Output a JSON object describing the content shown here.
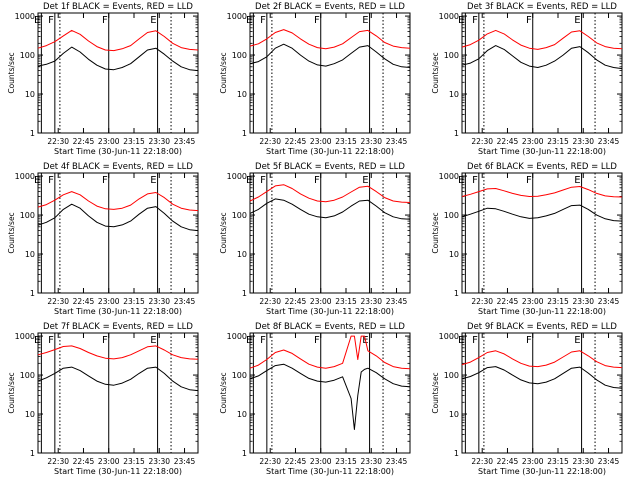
{
  "figure": {
    "xlabel": "Start Time (30-Jun-11 22:18:00)",
    "ylabel": "Counts/sec",
    "x_ticks": [
      "22:30",
      "22:45",
      "23:00",
      "23:15",
      "23:30",
      "23:45"
    ],
    "y_ticks": [
      "1",
      "10",
      "100",
      "1000"
    ],
    "colors": {
      "black_series": "#000000",
      "red_series": "#ff0000",
      "axes": "#000000",
      "background": "#ffffff"
    }
  },
  "chart_data": [
    {
      "type": "line",
      "title": "Det 1f BLACK = Events, RED = LLD",
      "xlabel": "Start Time (30-Jun-11 22:18:00)",
      "ylabel": "Counts/sec",
      "x_unit": "minutes after 22:18",
      "xlim": [
        0,
        95
      ],
      "ylim": [
        1,
        1200
      ],
      "yscale": "log",
      "x": [
        0,
        5,
        10,
        15,
        20,
        25,
        30,
        35,
        40,
        45,
        50,
        55,
        60,
        65,
        70,
        75,
        80,
        85,
        90,
        95
      ],
      "series": [
        {
          "name": "Events",
          "color": "#000000",
          "values": [
            52,
            58,
            70,
            110,
            160,
            120,
            78,
            55,
            44,
            42,
            48,
            60,
            90,
            135,
            150,
            105,
            70,
            50,
            42,
            40
          ]
        },
        {
          "name": "LLD",
          "color": "#ff0000",
          "values": [
            150,
            175,
            220,
            310,
            430,
            340,
            230,
            165,
            135,
            130,
            145,
            175,
            260,
            380,
            420,
            300,
            200,
            155,
            140,
            135
          ]
        }
      ],
      "markers": [
        {
          "label": "E",
          "x": 2,
          "style": "solid"
        },
        {
          "label": "F",
          "x": 10,
          "style": "solid"
        },
        {
          "label": "",
          "x": 13,
          "style": "dotted"
        },
        {
          "label": "F",
          "x": 42,
          "style": "solid"
        },
        {
          "label": "E",
          "x": 71,
          "style": "solid"
        },
        {
          "label": "",
          "x": 79,
          "style": "dotted"
        }
      ]
    },
    {
      "type": "line",
      "title": "Det 2f BLACK = Events, RED = LLD",
      "xlabel": "Start Time (30-Jun-11 22:18:00)",
      "ylabel": "Counts/sec",
      "x_unit": "minutes after 22:18",
      "xlim": [
        0,
        95
      ],
      "ylim": [
        1,
        1200
      ],
      "yscale": "log",
      "x": [
        0,
        5,
        10,
        15,
        20,
        25,
        30,
        35,
        40,
        45,
        50,
        55,
        60,
        65,
        70,
        75,
        80,
        85,
        90,
        95
      ],
      "series": [
        {
          "name": "Events",
          "color": "#000000",
          "values": [
            60,
            68,
            90,
            150,
            190,
            150,
            100,
            70,
            56,
            52,
            60,
            75,
            110,
            160,
            175,
            120,
            80,
            58,
            50,
            48
          ]
        },
        {
          "name": "LLD",
          "color": "#ff0000",
          "values": [
            170,
            195,
            260,
            380,
            450,
            370,
            260,
            190,
            155,
            145,
            160,
            195,
            280,
            400,
            430,
            310,
            210,
            170,
            155,
            150
          ]
        }
      ],
      "markers": [
        {
          "label": "E",
          "x": 2,
          "style": "solid"
        },
        {
          "label": "F",
          "x": 10,
          "style": "solid"
        },
        {
          "label": "",
          "x": 13,
          "style": "dotted"
        },
        {
          "label": "F",
          "x": 42,
          "style": "solid"
        },
        {
          "label": "E",
          "x": 71,
          "style": "solid"
        },
        {
          "label": "",
          "x": 79,
          "style": "dotted"
        }
      ]
    },
    {
      "type": "line",
      "title": "Det 3f BLACK = Events, RED = LLD",
      "xlabel": "Start Time (30-Jun-11 22:18:00)",
      "ylabel": "Counts/sec",
      "x_unit": "minutes after 22:18",
      "xlim": [
        0,
        95
      ],
      "ylim": [
        1,
        1200
      ],
      "yscale": "log",
      "x": [
        0,
        5,
        10,
        15,
        20,
        25,
        30,
        35,
        40,
        45,
        50,
        55,
        60,
        65,
        70,
        75,
        80,
        85,
        90,
        95
      ],
      "series": [
        {
          "name": "Events",
          "color": "#000000",
          "values": [
            55,
            62,
            80,
            130,
            175,
            140,
            95,
            65,
            52,
            48,
            55,
            70,
            100,
            150,
            165,
            115,
            75,
            55,
            48,
            45
          ]
        },
        {
          "name": "LLD",
          "color": "#ff0000",
          "values": [
            160,
            185,
            240,
            350,
            430,
            350,
            245,
            180,
            150,
            140,
            155,
            185,
            270,
            390,
            420,
            300,
            205,
            165,
            150,
            145
          ]
        }
      ],
      "markers": [
        {
          "label": "E",
          "x": 2,
          "style": "solid"
        },
        {
          "label": "F",
          "x": 10,
          "style": "solid"
        },
        {
          "label": "",
          "x": 13,
          "style": "dotted"
        },
        {
          "label": "F",
          "x": 42,
          "style": "solid"
        },
        {
          "label": "E",
          "x": 71,
          "style": "solid"
        },
        {
          "label": "",
          "x": 79,
          "style": "dotted"
        }
      ]
    },
    {
      "type": "line",
      "title": "Det 4f BLACK = Events, RED = LLD",
      "xlabel": "Start Time (30-Jun-11 22:18:00)",
      "ylabel": "Counts/sec",
      "x_unit": "minutes after 22:18",
      "xlim": [
        0,
        95
      ],
      "ylim": [
        1,
        1200
      ],
      "yscale": "log",
      "x": [
        0,
        5,
        10,
        15,
        20,
        25,
        30,
        35,
        40,
        45,
        50,
        55,
        60,
        65,
        70,
        75,
        80,
        85,
        90,
        95
      ],
      "series": [
        {
          "name": "Events",
          "color": "#000000",
          "values": [
            55,
            65,
            85,
            140,
            190,
            150,
            95,
            65,
            52,
            50,
            56,
            70,
            105,
            150,
            165,
            110,
            70,
            50,
            42,
            40
          ]
        },
        {
          "name": "LLD",
          "color": "#ff0000",
          "values": [
            160,
            185,
            240,
            330,
            400,
            330,
            230,
            170,
            145,
            140,
            150,
            180,
            260,
            350,
            380,
            280,
            190,
            150,
            135,
            130
          ]
        }
      ],
      "markers": [
        {
          "label": "E",
          "x": 2,
          "style": "solid"
        },
        {
          "label": "F",
          "x": 10,
          "style": "solid"
        },
        {
          "label": "",
          "x": 13,
          "style": "dotted"
        },
        {
          "label": "F",
          "x": 42,
          "style": "solid"
        },
        {
          "label": "E",
          "x": 71,
          "style": "solid"
        },
        {
          "label": "",
          "x": 79,
          "style": "dotted"
        }
      ]
    },
    {
      "type": "line",
      "title": "Det 5f BLACK = Events, RED = LLD",
      "xlabel": "Start Time (30-Jun-11 22:18:00)",
      "ylabel": "Counts/sec",
      "x_unit": "minutes after 22:18",
      "xlim": [
        0,
        95
      ],
      "ylim": [
        1,
        1200
      ],
      "yscale": "log",
      "x": [
        0,
        5,
        10,
        15,
        20,
        25,
        30,
        35,
        40,
        45,
        50,
        55,
        60,
        65,
        70,
        75,
        80,
        85,
        90,
        95
      ],
      "series": [
        {
          "name": "Events",
          "color": "#000000",
          "values": [
            110,
            140,
            200,
            260,
            240,
            190,
            140,
            105,
            90,
            85,
            95,
            120,
            170,
            230,
            240,
            170,
            115,
            90,
            80,
            78
          ]
        },
        {
          "name": "LLD",
          "color": "#ff0000",
          "values": [
            230,
            290,
            400,
            560,
            600,
            480,
            350,
            270,
            230,
            220,
            240,
            290,
            390,
            520,
            550,
            400,
            280,
            230,
            215,
            210
          ]
        }
      ],
      "markers": [
        {
          "label": "E",
          "x": 2,
          "style": "solid"
        },
        {
          "label": "F",
          "x": 10,
          "style": "solid"
        },
        {
          "label": "",
          "x": 13,
          "style": "dotted"
        },
        {
          "label": "F",
          "x": 42,
          "style": "solid"
        },
        {
          "label": "E",
          "x": 71,
          "style": "solid"
        },
        {
          "label": "",
          "x": 79,
          "style": "dotted"
        }
      ]
    },
    {
      "type": "line",
      "title": "Det 6f BLACK = Events, RED = LLD",
      "xlabel": "Start Time (30-Jun-11 22:18:00)",
      "ylabel": "Counts/sec",
      "x_unit": "minutes after 22:18",
      "xlim": [
        0,
        95
      ],
      "ylim": [
        1,
        1200
      ],
      "yscale": "log",
      "x": [
        0,
        5,
        10,
        15,
        20,
        25,
        30,
        35,
        40,
        45,
        50,
        55,
        60,
        65,
        70,
        75,
        80,
        85,
        90,
        95
      ],
      "series": [
        {
          "name": "Events",
          "color": "#000000",
          "values": [
            90,
            105,
            125,
            150,
            145,
            125,
            105,
            90,
            82,
            85,
            95,
            110,
            140,
            175,
            180,
            140,
            100,
            80,
            72,
            70
          ]
        },
        {
          "name": "LLD",
          "color": "#ff0000",
          "values": [
            300,
            340,
            400,
            470,
            480,
            420,
            360,
            320,
            300,
            305,
            330,
            370,
            440,
            520,
            540,
            450,
            360,
            310,
            295,
            290
          ]
        }
      ],
      "markers": [
        {
          "label": "E",
          "x": 2,
          "style": "solid"
        },
        {
          "label": "F",
          "x": 10,
          "style": "solid"
        },
        {
          "label": "",
          "x": 13,
          "style": "dotted"
        },
        {
          "label": "F",
          "x": 42,
          "style": "solid"
        },
        {
          "label": "E",
          "x": 71,
          "style": "solid"
        },
        {
          "label": "",
          "x": 79,
          "style": "dotted"
        }
      ]
    },
    {
      "type": "line",
      "title": "Det 7f BLACK = Events, RED = LLD",
      "xlabel": "Start Time (30-Jun-11 22:18:00)",
      "ylabel": "Counts/sec",
      "x_unit": "minutes after 22:18",
      "xlim": [
        0,
        95
      ],
      "ylim": [
        1,
        1200
      ],
      "yscale": "log",
      "x": [
        0,
        5,
        10,
        15,
        20,
        25,
        30,
        35,
        40,
        45,
        50,
        55,
        60,
        65,
        70,
        75,
        80,
        85,
        90,
        95
      ],
      "series": [
        {
          "name": "Events",
          "color": "#000000",
          "values": [
            70,
            85,
            110,
            150,
            160,
            130,
            95,
            70,
            58,
            55,
            62,
            78,
            110,
            150,
            160,
            110,
            70,
            50,
            42,
            40
          ]
        },
        {
          "name": "LLD",
          "color": "#ff0000",
          "values": [
            330,
            380,
            450,
            540,
            560,
            480,
            380,
            310,
            270,
            260,
            280,
            330,
            420,
            530,
            560,
            440,
            330,
            280,
            260,
            255
          ]
        }
      ],
      "markers": [
        {
          "label": "E",
          "x": 2,
          "style": "solid"
        },
        {
          "label": "F",
          "x": 10,
          "style": "solid"
        },
        {
          "label": "",
          "x": 13,
          "style": "dotted"
        },
        {
          "label": "F",
          "x": 42,
          "style": "solid"
        },
        {
          "label": "E",
          "x": 71,
          "style": "solid"
        },
        {
          "label": "",
          "x": 79,
          "style": "dotted"
        }
      ]
    },
    {
      "type": "line",
      "title": "Det 8f BLACK = Events, RED = LLD",
      "xlabel": "Start Time (30-Jun-11 22:18:00)",
      "ylabel": "Counts/sec",
      "x_unit": "minutes after 22:18",
      "xlim": [
        0,
        95
      ],
      "ylim": [
        1,
        1200
      ],
      "yscale": "log",
      "x": [
        0,
        5,
        10,
        15,
        20,
        25,
        30,
        35,
        40,
        45,
        50,
        55,
        60,
        62,
        64,
        66,
        68,
        70,
        75,
        80,
        85,
        90,
        95
      ],
      "series": [
        {
          "name": "Events",
          "color": "#000000",
          "values": [
            80,
            95,
            130,
            175,
            190,
            150,
            110,
            82,
            70,
            66,
            74,
            90,
            25,
            4,
            30,
            120,
            140,
            150,
            115,
            80,
            60,
            52,
            50
          ]
        },
        {
          "name": "LLD",
          "color": "#ff0000",
          "values": [
            150,
            180,
            250,
            380,
            440,
            360,
            260,
            190,
            160,
            150,
            165,
            200,
            1000,
            1000,
            250,
            1000,
            1000,
            420,
            310,
            210,
            165,
            150,
            145
          ]
        }
      ],
      "markers": [
        {
          "label": "E",
          "x": 2,
          "style": "solid"
        },
        {
          "label": "F",
          "x": 10,
          "style": "solid"
        },
        {
          "label": "",
          "x": 13,
          "style": "dotted"
        },
        {
          "label": "F",
          "x": 42,
          "style": "solid"
        },
        {
          "label": "E",
          "x": 71,
          "style": "solid"
        },
        {
          "label": "",
          "x": 79,
          "style": "dotted"
        }
      ]
    },
    {
      "type": "line",
      "title": "Det 9f BLACK = Events, RED = LLD",
      "xlabel": "Start Time (30-Jun-11 22:18:00)",
      "ylabel": "Counts/sec",
      "x_unit": "minutes after 22:18",
      "xlim": [
        0,
        95
      ],
      "ylim": [
        1,
        1200
      ],
      "yscale": "log",
      "x": [
        0,
        5,
        10,
        15,
        20,
        25,
        30,
        35,
        40,
        45,
        50,
        55,
        60,
        65,
        70,
        75,
        80,
        85,
        90,
        95
      ],
      "series": [
        {
          "name": "Events",
          "color": "#000000",
          "values": [
            80,
            92,
            115,
            155,
            165,
            135,
            100,
            75,
            63,
            60,
            66,
            80,
            110,
            150,
            160,
            112,
            75,
            55,
            48,
            46
          ]
        },
        {
          "name": "LLD",
          "color": "#ff0000",
          "values": [
            185,
            215,
            280,
            380,
            420,
            350,
            260,
            200,
            170,
            165,
            180,
            215,
            290,
            390,
            420,
            310,
            220,
            175,
            160,
            155
          ]
        }
      ],
      "markers": [
        {
          "label": "E",
          "x": 2,
          "style": "solid"
        },
        {
          "label": "F",
          "x": 10,
          "style": "solid"
        },
        {
          "label": "",
          "x": 13,
          "style": "dotted"
        },
        {
          "label": "F",
          "x": 42,
          "style": "solid"
        },
        {
          "label": "E",
          "x": 71,
          "style": "solid"
        },
        {
          "label": "",
          "x": 79,
          "style": "dotted"
        }
      ]
    }
  ]
}
